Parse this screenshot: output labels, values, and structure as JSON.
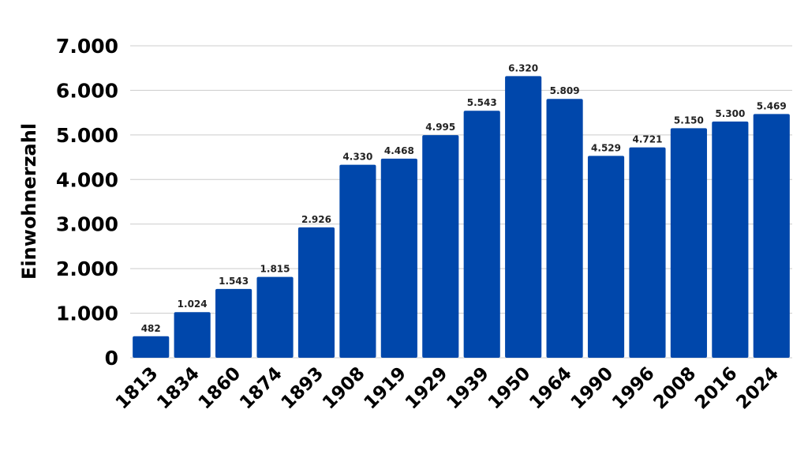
{
  "chart_data": {
    "type": "bar",
    "ylabel": "Einwohnerzahl",
    "xlabel": "",
    "categories": [
      "1813",
      "1834",
      "1860",
      "1874",
      "1893",
      "1908",
      "1919",
      "1929",
      "1939",
      "1950",
      "1964",
      "1990",
      "1996",
      "2008",
      "2016",
      "2024"
    ],
    "values": [
      482,
      1024,
      1543,
      1815,
      2926,
      4330,
      4468,
      4995,
      5543,
      6320,
      5809,
      4529,
      4721,
      5150,
      5300,
      5469
    ],
    "data_labels": [
      "482",
      "1.024",
      "1.543",
      "1.815",
      "2.926",
      "4.330",
      "4.468",
      "4.995",
      "5.543",
      "6.320",
      "5.809",
      "4.529",
      "4.721",
      "5.150",
      "5.300",
      "5.469"
    ],
    "yticks": [
      0,
      1000,
      2000,
      3000,
      4000,
      5000,
      6000,
      7000
    ],
    "ytick_labels": [
      "0",
      "1.000",
      "2.000",
      "3.000",
      "4.000",
      "5.000",
      "6.000",
      "7.000"
    ],
    "ylim": [
      0,
      7000
    ],
    "grid": true,
    "bar_color": "#0047ab",
    "grid_color": "#cccccc"
  }
}
